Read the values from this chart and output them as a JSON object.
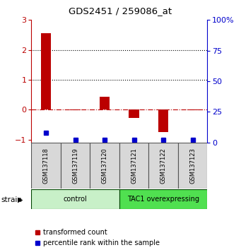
{
  "title": "GDS2451 / 259086_at",
  "samples": [
    "GSM137118",
    "GSM137119",
    "GSM137120",
    "GSM137121",
    "GSM137122",
    "GSM137123"
  ],
  "red_values": [
    2.55,
    -0.02,
    0.42,
    -0.28,
    -0.75,
    -0.02
  ],
  "blue_values_pct": [
    8,
    2,
    2,
    2,
    2,
    2
  ],
  "groups": [
    {
      "label": "control",
      "start": 0,
      "end": 3,
      "color": "#c8f0c8"
    },
    {
      "label": "TAC1 overexpressing",
      "start": 3,
      "end": 6,
      "color": "#50e050"
    }
  ],
  "ylim_left": [
    -1.1,
    3.0
  ],
  "ylim_right": [
    0,
    100
  ],
  "yticks_left": [
    -1,
    0,
    1,
    2,
    3
  ],
  "yticks_right": [
    0,
    25,
    50,
    75,
    100
  ],
  "yticklabels_right": [
    "0",
    "25",
    "50",
    "75",
    "100%"
  ],
  "dotted_lines": [
    1.0,
    2.0
  ],
  "red_color": "#bb0000",
  "blue_color": "#0000cc",
  "bar_width": 0.35,
  "legend_red_label": "transformed count",
  "legend_blue_label": "percentile rank within the sample",
  "strain_label": "strain",
  "background_color": "#ffffff",
  "panel_bg": "#d8d8d8"
}
